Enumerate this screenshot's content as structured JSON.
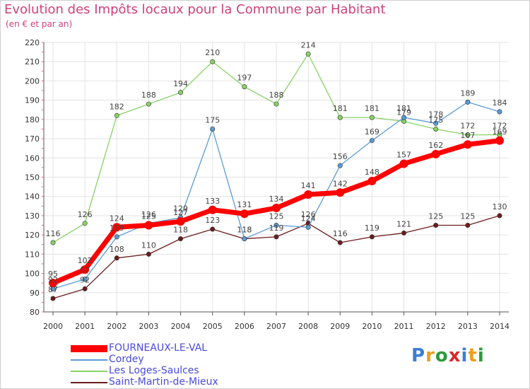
{
  "chart_data": {
    "type": "line",
    "title": "Evolution des Impôts locaux pour la Commune par Habitant",
    "subtitle": "(en € et par an)",
    "x": [
      2000,
      2001,
      2002,
      2003,
      2004,
      2005,
      2006,
      2007,
      2008,
      2009,
      2010,
      2011,
      2012,
      2013,
      2014
    ],
    "ylim": [
      80,
      220
    ],
    "yticks": [
      80,
      90,
      100,
      110,
      120,
      130,
      140,
      150,
      160,
      170,
      180,
      190,
      200,
      210,
      220
    ],
    "grid": true,
    "legend_position": "bottom-left",
    "series": [
      {
        "name": "FOURNEAUX-LE-VAL",
        "color": "#ff0000",
        "values": [
          95,
          102,
          124,
          125,
          127,
          133,
          131,
          134,
          141,
          142,
          148,
          157,
          162,
          167,
          169
        ]
      },
      {
        "name": "Cordey",
        "color": "#5b9bd5",
        "values": [
          92,
          97,
          119,
          126,
          129,
          175,
          118,
          125,
          124,
          156,
          169,
          181,
          178,
          189,
          184
        ]
      },
      {
        "name": "Les Loges-Saulces",
        "color": "#88d266",
        "values": [
          116,
          126,
          182,
          188,
          194,
          210,
          197,
          188,
          214,
          181,
          181,
          179,
          175,
          172,
          172
        ]
      },
      {
        "name": "Saint-Martin-de-Mieux",
        "color": "#6b1c1c",
        "values": [
          87,
          92,
          108,
          110,
          118,
          123,
          118,
          119,
          126,
          116,
          119,
          121,
          125,
          125,
          130
        ]
      }
    ]
  },
  "logo_text": "Proxiti"
}
